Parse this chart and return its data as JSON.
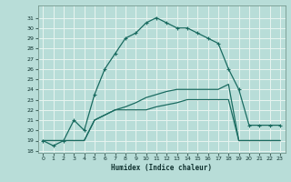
{
  "xlabel": "Humidex (Indice chaleur)",
  "bg_color": "#b8ddd8",
  "grid_color": "#e8f4f0",
  "line_color": "#1a6b60",
  "xlim": [
    -0.5,
    23.5
  ],
  "ylim": [
    17.8,
    32.2
  ],
  "yticks": [
    18,
    19,
    20,
    21,
    22,
    23,
    24,
    25,
    26,
    27,
    28,
    29,
    30,
    31
  ],
  "xticks": [
    0,
    1,
    2,
    3,
    4,
    5,
    6,
    7,
    8,
    9,
    10,
    11,
    12,
    13,
    14,
    15,
    16,
    17,
    18,
    19,
    20,
    21,
    22,
    23
  ],
  "curve2_x": [
    0,
    1,
    2,
    3,
    4,
    5,
    6,
    7,
    8,
    9,
    10,
    11,
    12,
    13,
    14,
    15,
    16,
    17,
    18,
    19,
    20,
    21,
    22,
    23
  ],
  "curve2_y": [
    19.0,
    19.0,
    19.0,
    19.0,
    19.0,
    21.0,
    21.5,
    22.0,
    22.3,
    22.7,
    23.2,
    23.5,
    23.8,
    24.0,
    24.0,
    24.0,
    24.0,
    24.0,
    24.5,
    19.0,
    19.0,
    19.0,
    19.0,
    19.0
  ],
  "curve3_x": [
    0,
    1,
    2,
    3,
    4,
    5,
    6,
    7,
    8,
    9,
    10,
    11,
    12,
    13,
    14,
    15,
    16,
    17,
    18,
    19,
    20,
    21,
    22,
    23
  ],
  "curve3_y": [
    19.0,
    19.0,
    19.0,
    19.0,
    19.0,
    21.0,
    21.5,
    22.0,
    22.0,
    22.0,
    22.0,
    22.3,
    22.5,
    22.7,
    23.0,
    23.0,
    23.0,
    23.0,
    23.0,
    19.0,
    19.0,
    19.0,
    19.0,
    19.0
  ],
  "marker1_x": [
    0,
    1,
    2,
    3,
    4,
    5,
    6,
    7,
    8,
    9,
    10,
    11,
    12,
    13,
    14,
    15,
    16,
    17,
    18,
    19,
    20,
    21,
    22,
    23
  ],
  "marker1_y": [
    19.0,
    18.5,
    19.0,
    21.0,
    20.0,
    23.5,
    26.0,
    27.5,
    29.0,
    29.5,
    30.5,
    31.0,
    30.5,
    30.0,
    30.0,
    29.5,
    29.0,
    28.5,
    26.0,
    24.0,
    20.5,
    20.5,
    20.5,
    20.5
  ]
}
